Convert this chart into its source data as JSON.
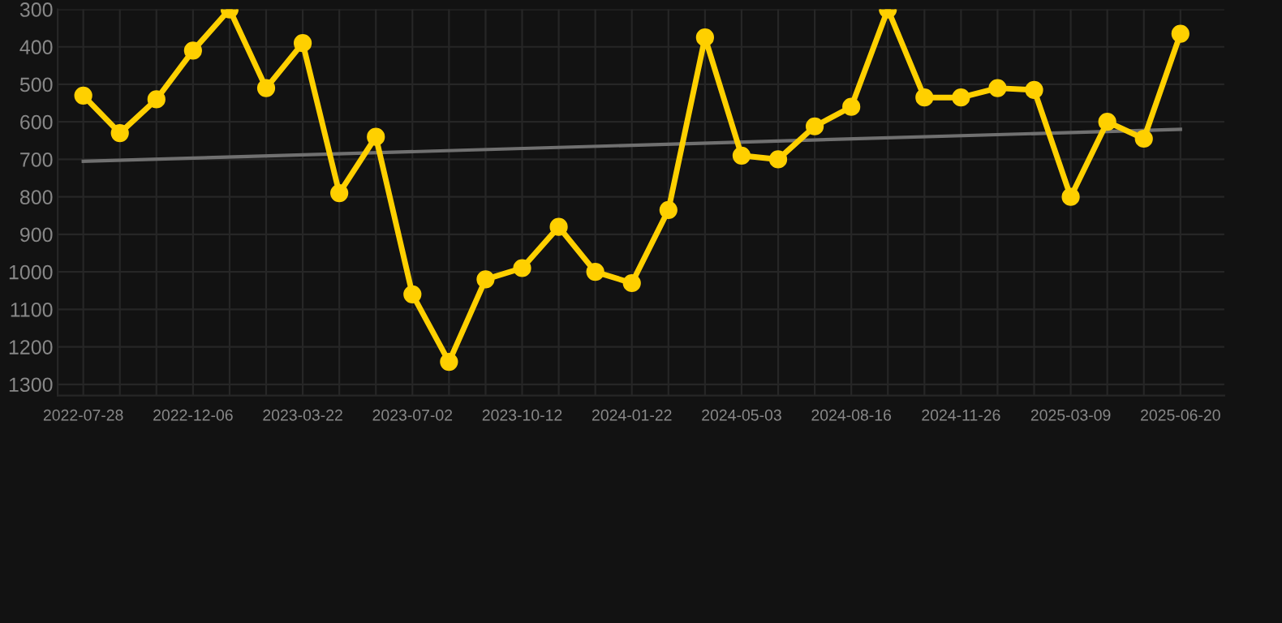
{
  "chart_data": {
    "type": "line",
    "categories": [
      "2022-07-28",
      null,
      null,
      "2022-12-06",
      null,
      null,
      "2023-03-22",
      null,
      null,
      "2023-07-02",
      null,
      null,
      "2023-10-12",
      null,
      null,
      "2024-01-22",
      null,
      null,
      "2024-05-03",
      null,
      null,
      "2024-08-16",
      null,
      null,
      "2024-11-26",
      null,
      null,
      "2025-03-09",
      null,
      null,
      "2025-06-20"
    ],
    "series": [
      {
        "color": "#ffd000",
        "marker": "circle",
        "values": [
          530,
          630,
          540,
          410,
          300,
          510,
          390,
          790,
          640,
          1060,
          1240,
          1020,
          990,
          880,
          1000,
          1030,
          835,
          375,
          690,
          700,
          612,
          560,
          300,
          535,
          535,
          510,
          515,
          800,
          600,
          645,
          365
        ]
      },
      {
        "color": "#707070",
        "marker": "none",
        "values": [
          705,
          null,
          null,
          null,
          null,
          null,
          null,
          null,
          null,
          null,
          null,
          null,
          null,
          null,
          null,
          null,
          null,
          null,
          null,
          null,
          null,
          null,
          null,
          null,
          null,
          null,
          null,
          null,
          null,
          null,
          620
        ]
      }
    ],
    "ylim": [
      1330,
      300
    ],
    "yticks": [
      300,
      400,
      500,
      600,
      700,
      800,
      900,
      1000,
      1100,
      1200,
      1300
    ],
    "grid": true,
    "line_style": "solid"
  }
}
